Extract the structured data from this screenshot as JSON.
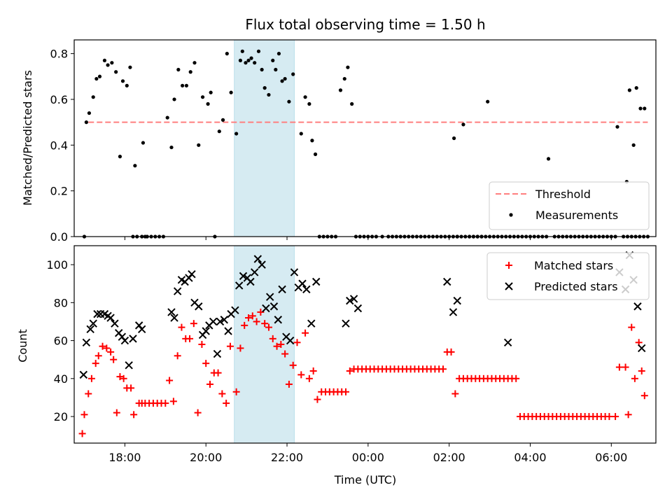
{
  "chart_data": [
    {
      "type": "scatter",
      "title": "Flux total observing time = 1.50 h",
      "ylabel": "Matched/Predicted stars",
      "xlabel": "",
      "ylim": [
        0,
        0.86
      ],
      "xlim": [
        16.75,
        31.1
      ],
      "yticks": [
        0.0,
        0.2,
        0.4,
        0.6,
        0.8
      ],
      "ytick_labels": [
        "0.0",
        "0.2",
        "0.4",
        "0.6",
        "0.8"
      ],
      "x_unit": "hours since 00:00 UTC on observing night (values above 24 are after midnight)",
      "shaded_span": {
        "x_start": 20.7,
        "x_end": 22.18,
        "color": "#add8e6"
      },
      "threshold": {
        "y": 0.5,
        "x_start": 17.1,
        "x_end": 30.9,
        "name": "Threshold",
        "color": "#ff7f7f"
      },
      "legend": {
        "position": "lower right",
        "entries": [
          "Threshold",
          "Measurements"
        ]
      },
      "series": [
        {
          "name": "Measurements",
          "color": "#000000",
          "marker": "dot",
          "x": [
            17.0,
            17.05,
            17.12,
            17.22,
            17.3,
            17.38,
            17.5,
            17.58,
            17.68,
            17.78,
            17.88,
            17.95,
            18.05,
            18.13,
            18.2,
            18.3,
            18.42,
            18.5,
            18.25,
            18.45,
            18.55,
            18.65,
            18.75,
            18.85,
            18.95,
            19.05,
            19.15,
            19.22,
            19.32,
            19.42,
            19.52,
            19.62,
            19.72,
            19.82,
            19.92,
            20.05,
            20.12,
            20.22,
            20.33,
            20.42,
            20.52,
            20.62,
            20.75,
            20.85,
            20.9,
            20.98,
            21.05,
            21.12,
            21.2,
            21.3,
            21.38,
            21.45,
            21.55,
            21.65,
            21.72,
            21.8,
            21.88,
            21.95,
            22.05,
            22.15,
            22.35,
            22.45,
            22.55,
            22.62,
            22.7,
            22.8,
            22.9,
            23.0,
            23.1,
            23.2,
            23.32,
            23.42,
            23.5,
            23.6,
            23.7,
            23.8,
            23.9,
            24.0,
            24.1,
            24.2,
            24.35,
            24.5,
            24.6,
            24.7,
            24.8,
            24.9,
            25.0,
            25.1,
            25.2,
            25.3,
            25.4,
            25.5,
            25.6,
            25.7,
            25.8,
            25.9,
            26.0,
            26.1,
            26.2,
            26.3,
            26.4,
            26.5,
            26.6,
            26.7,
            26.8,
            26.95,
            26.12,
            26.2,
            26.35,
            26.5,
            26.6,
            26.7,
            26.8,
            26.9,
            27.0,
            27.1,
            27.2,
            27.3,
            27.4,
            27.5,
            27.6,
            27.7,
            27.8,
            27.9,
            28.0,
            28.1,
            28.2,
            28.3,
            28.4,
            28.45,
            28.6,
            28.7,
            28.8,
            28.9,
            29.0,
            29.1,
            29.2,
            29.3,
            29.4,
            29.5,
            29.6,
            29.7,
            29.8,
            29.9,
            30.0,
            30.1,
            30.3,
            30.4,
            30.5,
            30.6,
            30.7,
            30.8,
            30.9,
            30.15,
            30.38,
            30.45,
            30.55,
            30.62,
            30.72,
            30.82
          ],
          "y": [
            0.0,
            0.5,
            0.54,
            0.61,
            0.69,
            0.7,
            0.77,
            0.75,
            0.76,
            0.72,
            0.35,
            0.68,
            0.66,
            0.74,
            0.0,
            0.0,
            0.0,
            0.0,
            0.31,
            0.41,
            0.0,
            0.0,
            0.0,
            0.0,
            0.0,
            0.52,
            0.39,
            0.6,
            0.73,
            0.66,
            0.66,
            0.72,
            0.76,
            0.4,
            0.61,
            0.58,
            0.63,
            0.0,
            0.46,
            0.51,
            0.8,
            0.63,
            0.45,
            0.77,
            0.81,
            0.76,
            0.77,
            0.78,
            0.76,
            0.81,
            0.73,
            0.65,
            0.62,
            0.77,
            0.73,
            0.8,
            0.68,
            0.69,
            0.59,
            0.71,
            0.45,
            0.61,
            0.58,
            0.42,
            0.36,
            0.0,
            0.0,
            0.0,
            0.0,
            0.0,
            0.64,
            0.69,
            0.74,
            0.58,
            0.0,
            0.0,
            0.0,
            0.0,
            0.0,
            0.0,
            0.0,
            0.0,
            0.0,
            0.0,
            0.0,
            0.0,
            0.0,
            0.0,
            0.0,
            0.0,
            0.0,
            0.0,
            0.0,
            0.0,
            0.0,
            0.0,
            0.0,
            0.0,
            0.0,
            0.0,
            0.0,
            0.0,
            0.0,
            0.0,
            0.0,
            0.59,
            0.43,
            0.0,
            0.49,
            0.0,
            0.0,
            0.0,
            0.0,
            0.0,
            0.0,
            0.0,
            0.0,
            0.0,
            0.0,
            0.0,
            0.0,
            0.0,
            0.0,
            0.0,
            0.0,
            0.0,
            0.0,
            0.0,
            0.0,
            0.34,
            0.0,
            0.0,
            0.0,
            0.0,
            0.0,
            0.0,
            0.0,
            0.0,
            0.0,
            0.0,
            0.0,
            0.0,
            0.0,
            0.0,
            0.0,
            0.0,
            0.0,
            0.0,
            0.0,
            0.0,
            0.0,
            0.0,
            0.0,
            0.48,
            0.24,
            0.64,
            0.4,
            0.65,
            0.56,
            0.56
          ]
        }
      ]
    },
    {
      "type": "scatter",
      "title": "",
      "xlabel": "Time (UTC)",
      "ylabel": "Count",
      "ylim": [
        6,
        110
      ],
      "xlim": [
        16.75,
        31.1
      ],
      "xticks": [
        18,
        20,
        22,
        24,
        26,
        28,
        30
      ],
      "xtick_labels": [
        "18:00",
        "20:00",
        "22:00",
        "00:00",
        "02:00",
        "04:00",
        "06:00"
      ],
      "yticks": [
        20,
        40,
        60,
        80,
        100
      ],
      "ytick_labels": [
        "20",
        "40",
        "60",
        "80",
        "100"
      ],
      "shaded_span": {
        "x_start": 20.7,
        "x_end": 22.18,
        "color": "#add8e6"
      },
      "legend": {
        "position": "upper right",
        "entries": [
          "Matched stars",
          "Predicted stars"
        ]
      },
      "series": [
        {
          "name": "Matched stars",
          "color": "#ff0000",
          "marker": "plus",
          "x": [
            16.95,
            17.0,
            17.1,
            17.18,
            17.28,
            17.35,
            17.45,
            17.55,
            17.65,
            17.72,
            17.8,
            17.88,
            17.97,
            18.05,
            18.15,
            18.22,
            18.35,
            18.42,
            18.5,
            18.6,
            18.7,
            18.8,
            18.9,
            19.0,
            19.1,
            19.2,
            19.3,
            19.4,
            19.5,
            19.6,
            19.7,
            19.8,
            19.9,
            20.0,
            20.1,
            20.2,
            20.3,
            20.4,
            20.5,
            20.6,
            20.75,
            20.85,
            20.95,
            21.05,
            21.15,
            21.25,
            21.35,
            21.45,
            21.55,
            21.65,
            21.75,
            21.85,
            21.95,
            22.05,
            22.15,
            22.25,
            22.35,
            22.45,
            22.55,
            22.65,
            22.75,
            22.85,
            22.95,
            23.05,
            23.15,
            23.25,
            23.35,
            23.45,
            23.55,
            23.65,
            23.75,
            23.85,
            23.95,
            24.05,
            24.15,
            24.25,
            24.35,
            24.45,
            24.55,
            24.65,
            24.75,
            24.85,
            24.95,
            25.05,
            25.15,
            25.25,
            25.35,
            25.45,
            25.55,
            25.65,
            25.75,
            25.85,
            25.95,
            26.05,
            26.15,
            26.25,
            26.35,
            26.45,
            26.55,
            26.65,
            26.75,
            26.85,
            26.95,
            27.05,
            27.15,
            27.25,
            27.35,
            27.45,
            27.55,
            27.65,
            27.75,
            27.85,
            27.95,
            28.05,
            28.15,
            28.25,
            28.35,
            28.45,
            28.55,
            28.65,
            28.75,
            28.85,
            28.95,
            29.05,
            29.15,
            29.25,
            29.35,
            29.45,
            29.55,
            29.65,
            29.75,
            29.85,
            29.95,
            30.1,
            30.2,
            30.35,
            30.42,
            30.5,
            30.58,
            30.68,
            30.75,
            30.82
          ],
          "y": [
            11,
            21,
            32,
            40,
            48,
            52,
            57,
            56,
            54,
            50,
            22,
            41,
            40,
            35,
            35,
            21,
            27,
            27,
            27,
            27,
            27,
            27,
            27,
            27,
            39,
            28,
            52,
            67,
            61,
            61,
            69,
            22,
            58,
            48,
            37,
            43,
            43,
            32,
            27,
            57,
            33,
            56,
            68,
            72,
            73,
            70,
            75,
            69,
            67,
            61,
            57,
            58,
            53,
            37,
            47,
            59,
            42,
            64,
            40,
            44,
            29,
            33,
            33,
            33,
            33,
            33,
            33,
            33,
            44,
            45,
            45,
            45,
            45,
            45,
            45,
            45,
            45,
            45,
            45,
            45,
            45,
            45,
            45,
            45,
            45,
            45,
            45,
            45,
            45,
            45,
            45,
            45,
            54,
            54,
            32,
            40,
            40,
            40,
            40,
            40,
            40,
            40,
            40,
            40,
            40,
            40,
            40,
            40,
            40,
            40,
            20,
            20,
            20,
            20,
            20,
            20,
            20,
            20,
            20,
            20,
            20,
            20,
            20,
            20,
            20,
            20,
            20,
            20,
            20,
            20,
            20,
            20,
            20,
            20,
            46,
            46,
            21,
            67,
            40,
            59,
            44,
            31
          ]
        },
        {
          "name": "Predicted stars",
          "color": "#000000",
          "marker": "x",
          "x": [
            16.98,
            17.05,
            17.15,
            17.22,
            17.32,
            17.4,
            17.5,
            17.58,
            17.65,
            17.75,
            17.85,
            17.93,
            18.0,
            18.1,
            18.2,
            18.35,
            18.42,
            19.15,
            19.22,
            19.3,
            19.4,
            19.48,
            19.58,
            19.65,
            19.72,
            19.82,
            19.92,
            20.0,
            20.08,
            20.18,
            20.28,
            20.35,
            20.45,
            20.55,
            20.62,
            20.72,
            20.82,
            20.92,
            21.02,
            21.1,
            21.2,
            21.28,
            21.38,
            21.48,
            21.58,
            21.68,
            21.78,
            21.88,
            21.98,
            22.08,
            22.18,
            22.28,
            22.38,
            22.48,
            22.6,
            22.72,
            23.45,
            23.55,
            23.65,
            23.75,
            25.95,
            26.1,
            26.2,
            27.45,
            30.2,
            30.35,
            30.45,
            30.55,
            30.65,
            30.75
          ],
          "y": [
            42,
            59,
            66,
            69,
            74,
            74,
            74,
            73,
            72,
            69,
            64,
            62,
            60,
            47,
            61,
            68,
            66,
            75,
            72,
            86,
            92,
            91,
            93,
            95,
            80,
            78,
            63,
            65,
            68,
            70,
            53,
            70,
            71,
            65,
            74,
            76,
            89,
            94,
            93,
            91,
            96,
            103,
            100,
            77,
            83,
            78,
            71,
            87,
            62,
            60,
            96,
            88,
            90,
            87,
            69,
            91,
            69,
            81,
            82,
            77,
            91,
            75,
            81,
            59,
            96,
            87,
            105,
            92,
            78,
            56
          ]
        }
      ]
    }
  ]
}
